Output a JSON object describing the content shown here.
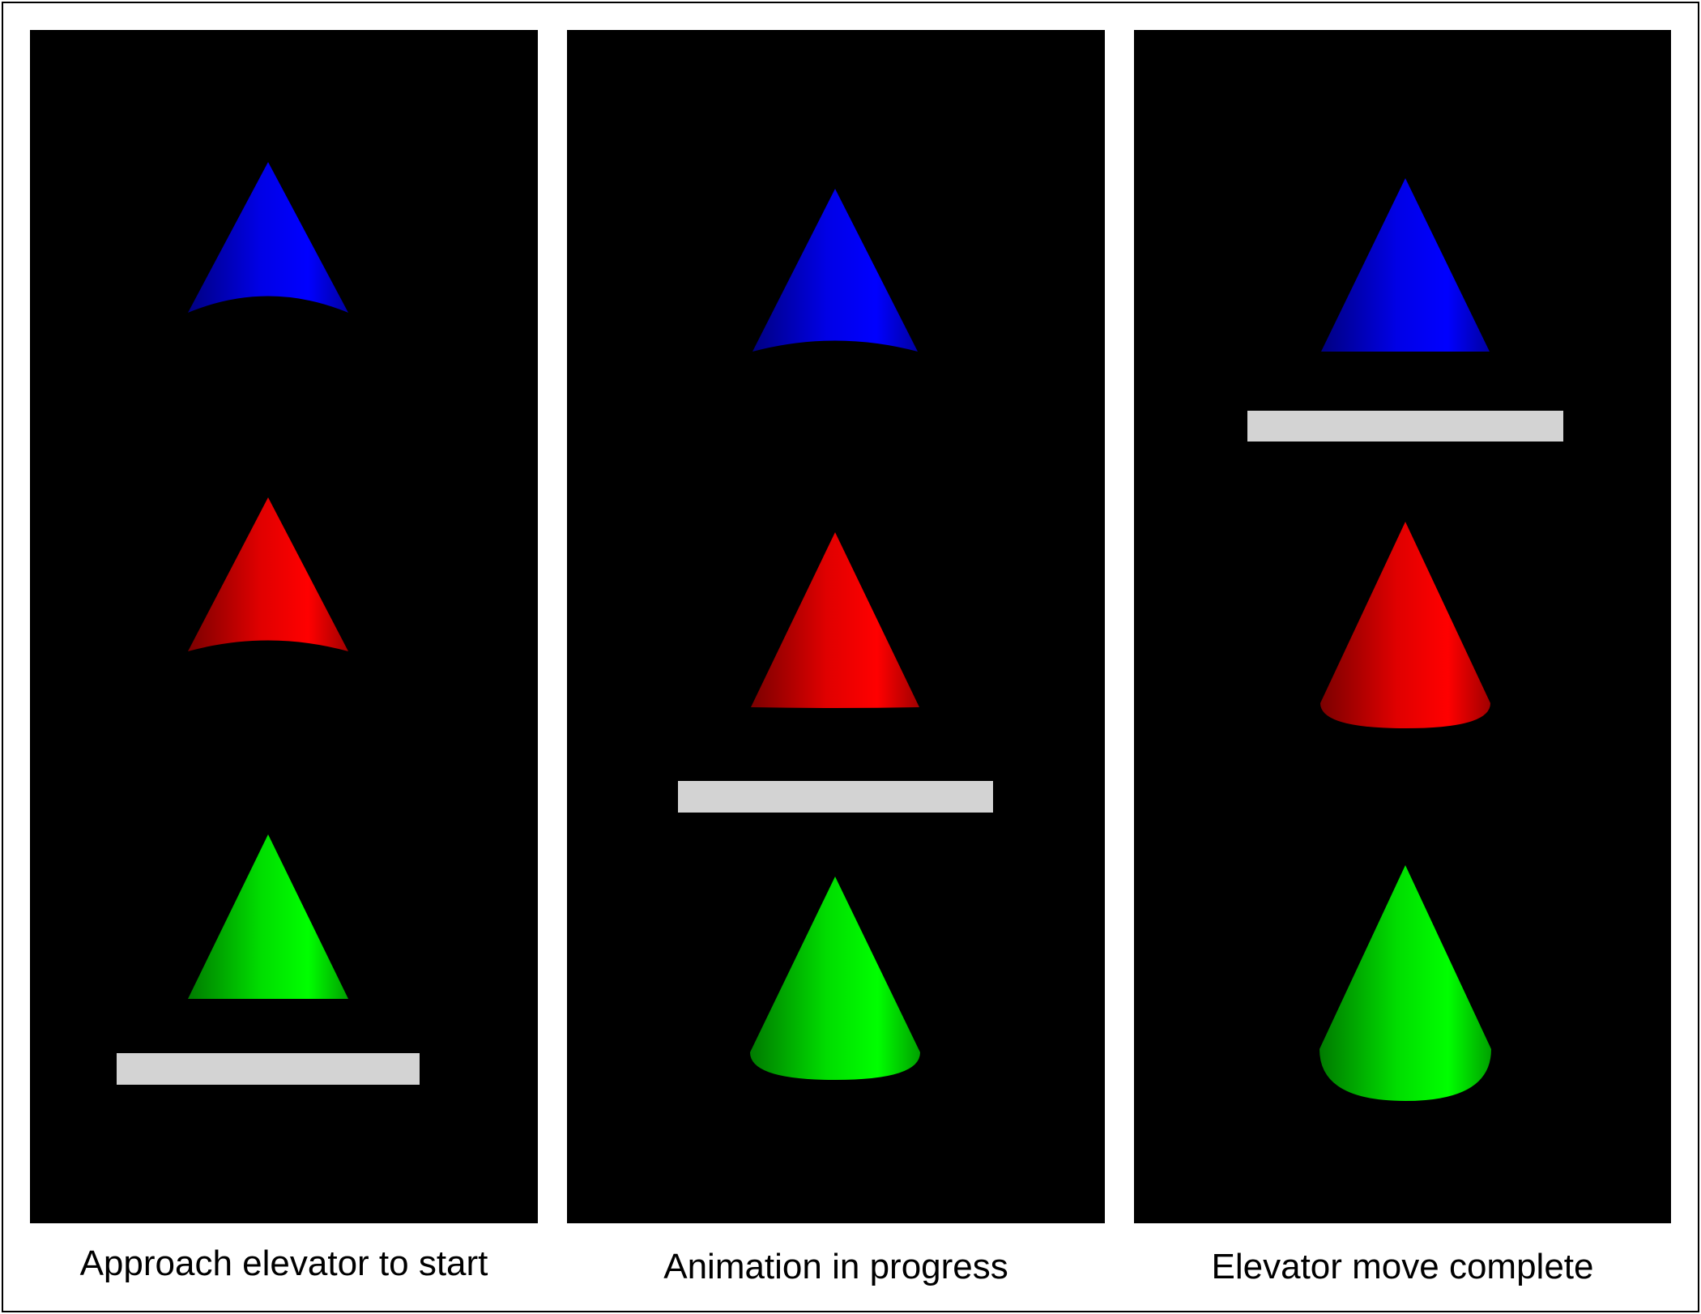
{
  "panels": [
    {
      "caption": "Approach elevator to start",
      "platform_color": "#d3d3d3",
      "cones": [
        {
          "color": "blue",
          "hex": "#0000ff"
        },
        {
          "color": "red",
          "hex": "#ff0000"
        },
        {
          "color": "green",
          "hex": "#00ff00"
        }
      ]
    },
    {
      "caption": "Animation in progress",
      "platform_color": "#d3d3d3",
      "cones": [
        {
          "color": "blue",
          "hex": "#0000ff"
        },
        {
          "color": "red",
          "hex": "#ff0000"
        },
        {
          "color": "green",
          "hex": "#00ff00"
        }
      ]
    },
    {
      "caption": "Elevator move complete",
      "platform_color": "#d3d3d3",
      "cones": [
        {
          "color": "blue",
          "hex": "#0000ff"
        },
        {
          "color": "red",
          "hex": "#ff0000"
        },
        {
          "color": "green",
          "hex": "#00ff00"
        }
      ]
    }
  ]
}
